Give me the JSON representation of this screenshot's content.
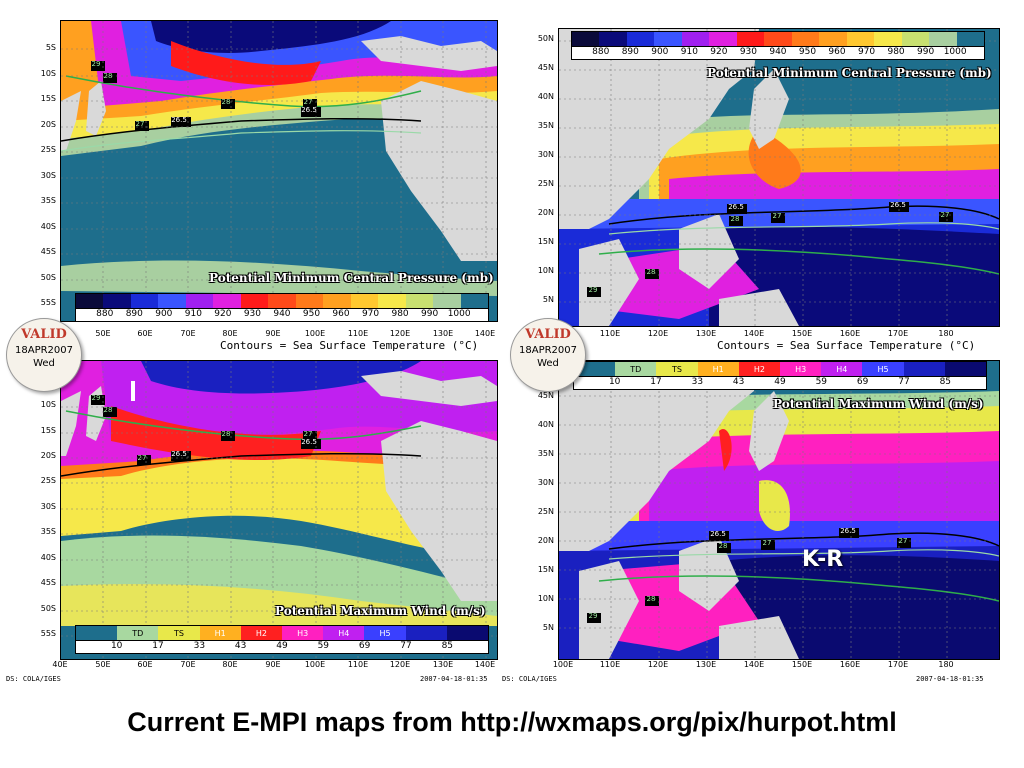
{
  "colors": {
    "land": "#d9d9d9",
    "ocean": "#1e6e8c",
    "contour_cool": "#9ad9a8",
    "contour_warm": "#2fae4a",
    "contour_265": "#000000",
    "outline": "#c8c8c8",
    "pressure_scale": [
      "#0a0a3a",
      "#0a0a7a",
      "#1a2bd8",
      "#3a55ff",
      "#a020f0",
      "#e020e0",
      "#ff1a1a",
      "#ff4a1a",
      "#ff7a1a",
      "#ffa020",
      "#ffc830",
      "#f6e84a",
      "#c8e070",
      "#a8cfa0",
      "#1e6e8c"
    ],
    "wind_scale": [
      "#1e6e8c",
      "#a8d8a0",
      "#e8e84a",
      "#ffb020",
      "#ff2020",
      "#ff20c0",
      "#c020f0",
      "#3a40ff",
      "#1a20c0",
      "#0a0a70"
    ]
  },
  "panels": [
    {
      "id": "io-pressure",
      "title": "Potential Minimum Central Pressure (mb)",
      "lat_ticks": [
        "5S",
        "10S",
        "15S",
        "20S",
        "25S",
        "30S",
        "35S",
        "40S",
        "45S",
        "50S",
        "55S"
      ],
      "lon_ticks": [],
      "legend_type": "pressure",
      "caption": "Contours = Sea Surface Temperature (°C)",
      "contour_labels": [
        "29",
        "28",
        "28",
        "27",
        "26.5",
        "26.5",
        "27"
      ]
    },
    {
      "id": "wp-pressure",
      "title": "Potential Minimum Central Pressure (mb)",
      "lat_ticks": [
        "50N",
        "45N",
        "40N",
        "35N",
        "30N",
        "25N",
        "20N",
        "15N",
        "10N",
        "5N"
      ],
      "lon_ticks": [
        "110E",
        "120E",
        "130E",
        "140E",
        "150E",
        "160E",
        "170E",
        "180"
      ],
      "legend_type": "pressure",
      "caption": "Contours = Sea Surface Temperature (°C)",
      "contour_labels": [
        "26.5",
        "27",
        "28",
        "26.5",
        "27",
        "28",
        "29"
      ]
    },
    {
      "id": "io-wind",
      "title": "Potential Maximum Wind (m/s)",
      "lat_ticks": [
        "10S",
        "15S",
        "20S",
        "25S",
        "30S",
        "35S",
        "40S",
        "45S",
        "50S",
        "55S"
      ],
      "lon_ticks": [
        "40E",
        "50E",
        "60E",
        "70E",
        "80E",
        "90E",
        "100E",
        "110E",
        "120E",
        "130E",
        "140E"
      ],
      "legend_type": "wind",
      "contour_labels": [
        "29",
        "28",
        "28",
        "27",
        "26.5",
        "26.5",
        "27"
      ],
      "credit_left": "DS: COLA/IGES",
      "credit_right": "2007-04-18-01:35"
    },
    {
      "id": "wp-wind",
      "title": "Potential Maximum Wind (m/s)",
      "lat_ticks": [
        "45N",
        "40N",
        "35N",
        "30N",
        "25N",
        "20N",
        "15N",
        "10N",
        "5N"
      ],
      "lon_ticks": [
        "100E",
        "110E",
        "120E",
        "130E",
        "140E",
        "150E",
        "160E",
        "170E",
        "180"
      ],
      "legend_type": "wind",
      "contour_labels": [
        "26.5",
        "28",
        "27",
        "26.5",
        "27",
        "28",
        "29"
      ],
      "credit_left": "DS: COLA/IGES",
      "credit_right": "2007-04-18-01:35"
    }
  ],
  "io_pressure_lon_ticks": [
    "50E",
    "60E",
    "70E",
    "80E",
    "90E",
    "100E",
    "110E",
    "120E",
    "130E",
    "140E"
  ],
  "pressure_legend": {
    "labels": [
      "880",
      "890",
      "900",
      "910",
      "920",
      "930",
      "940",
      "950",
      "960",
      "970",
      "980",
      "990",
      "1000"
    ]
  },
  "wind_legend": {
    "categories": [
      "",
      "TD",
      "TS",
      "H1",
      "H2",
      "H3",
      "H4",
      "H5",
      ""
    ],
    "values": [
      "10",
      "17",
      "33",
      "43",
      "49",
      "59",
      "69",
      "77",
      "85"
    ]
  },
  "valid_badge": {
    "label": "VALID",
    "date": "18APR2007",
    "day": "Wed"
  },
  "annotation": "K-R",
  "footer": "Current E-MPI maps from http://wxmaps.org/pix/hurpot.html"
}
